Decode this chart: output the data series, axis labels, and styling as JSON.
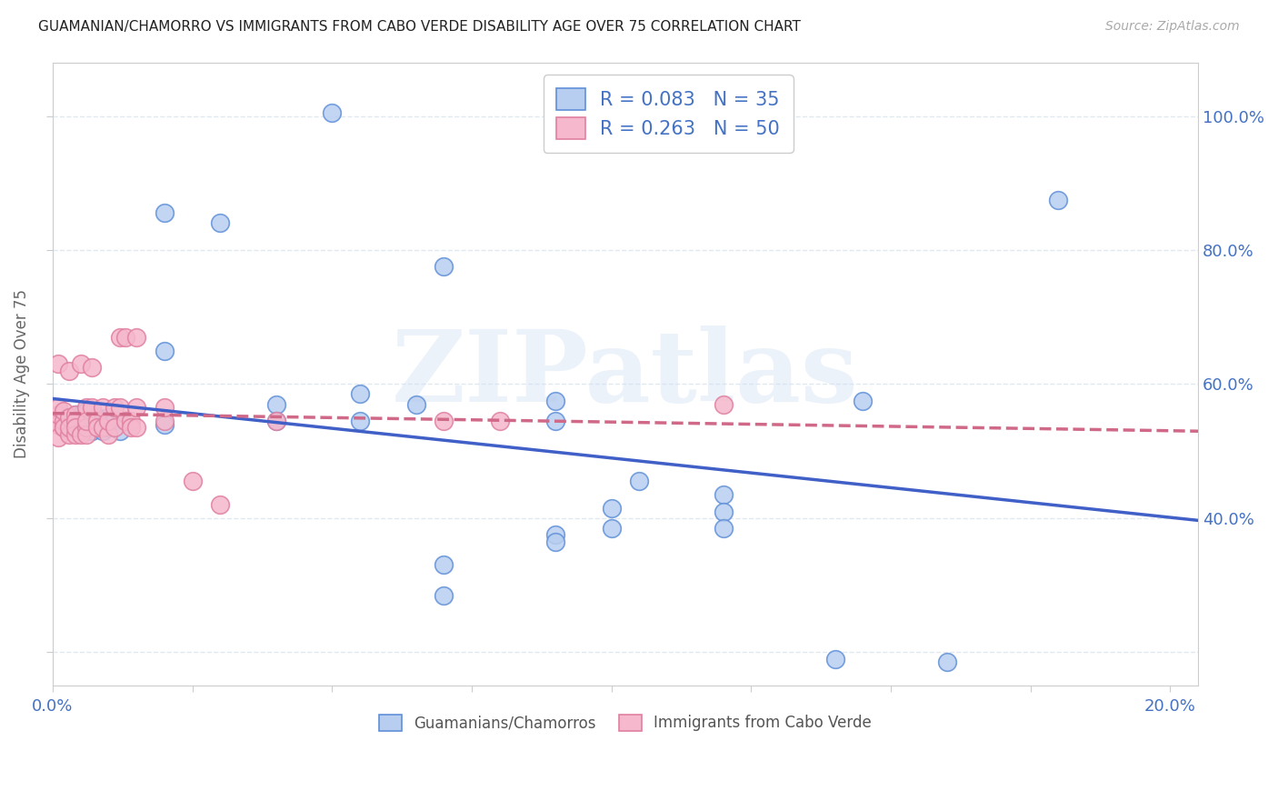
{
  "title": "GUAMANIAN/CHAMORRO VS IMMIGRANTS FROM CABO VERDE DISABILITY AGE OVER 75 CORRELATION CHART",
  "source": "Source: ZipAtlas.com",
  "ylabel": "Disability Age Over 75",
  "R_blue": 0.083,
  "N_blue": 35,
  "R_pink": 0.263,
  "N_pink": 50,
  "legend_label_blue": "Guamanians/Chamorros",
  "legend_label_pink": "Immigrants from Cabo Verde",
  "watermark": "ZIPatlas",
  "blue_fill": "#b8cef0",
  "blue_edge": "#6090d8",
  "pink_fill": "#f5b8cc",
  "pink_edge": "#e080a0",
  "blue_line": "#4060c8",
  "pink_line": "#d06888",
  "blue_scatter": [
    [
      0.001,
      0.54
    ],
    [
      0.002,
      0.54
    ],
    [
      0.003,
      0.545
    ],
    [
      0.003,
      0.535
    ],
    [
      0.004,
      0.555
    ],
    [
      0.004,
      0.545
    ],
    [
      0.005,
      0.54
    ],
    [
      0.005,
      0.555
    ],
    [
      0.005,
      0.53
    ],
    [
      0.006,
      0.56
    ],
    [
      0.006,
      0.545
    ],
    [
      0.007,
      0.545
    ],
    [
      0.007,
      0.53
    ],
    [
      0.008,
      0.55
    ],
    [
      0.008,
      0.545
    ],
    [
      0.009,
      0.53
    ],
    [
      0.009,
      0.545
    ],
    [
      0.01,
      0.535
    ],
    [
      0.01,
      0.55
    ],
    [
      0.011,
      0.545
    ],
    [
      0.012,
      0.53
    ],
    [
      0.013,
      0.545
    ],
    [
      0.02,
      0.65
    ],
    [
      0.02,
      0.54
    ],
    [
      0.04,
      0.57
    ],
    [
      0.04,
      0.545
    ],
    [
      0.055,
      0.585
    ],
    [
      0.055,
      0.545
    ],
    [
      0.065,
      0.57
    ],
    [
      0.09,
      0.545
    ],
    [
      0.09,
      0.575
    ],
    [
      0.105,
      0.455
    ],
    [
      0.12,
      0.435
    ],
    [
      0.145,
      0.575
    ],
    [
      0.18,
      0.875
    ]
  ],
  "blue_outliers": [
    [
      0.02,
      0.855
    ],
    [
      0.03,
      0.84
    ],
    [
      0.05,
      1.005
    ],
    [
      0.07,
      0.775
    ],
    [
      0.07,
      0.33
    ],
    [
      0.07,
      0.285
    ],
    [
      0.09,
      0.375
    ],
    [
      0.09,
      0.365
    ],
    [
      0.1,
      0.415
    ],
    [
      0.1,
      0.385
    ],
    [
      0.12,
      0.41
    ],
    [
      0.12,
      0.385
    ],
    [
      0.14,
      0.19
    ],
    [
      0.16,
      0.185
    ]
  ],
  "pink_scatter": [
    [
      0.001,
      0.54
    ],
    [
      0.001,
      0.555
    ],
    [
      0.001,
      0.565
    ],
    [
      0.001,
      0.63
    ],
    [
      0.001,
      0.52
    ],
    [
      0.002,
      0.535
    ],
    [
      0.002,
      0.545
    ],
    [
      0.002,
      0.56
    ],
    [
      0.002,
      0.535
    ],
    [
      0.003,
      0.62
    ],
    [
      0.003,
      0.55
    ],
    [
      0.003,
      0.525
    ],
    [
      0.003,
      0.535
    ],
    [
      0.004,
      0.555
    ],
    [
      0.004,
      0.545
    ],
    [
      0.004,
      0.525
    ],
    [
      0.004,
      0.535
    ],
    [
      0.005,
      0.63
    ],
    [
      0.005,
      0.525
    ],
    [
      0.006,
      0.565
    ],
    [
      0.006,
      0.535
    ],
    [
      0.006,
      0.525
    ],
    [
      0.006,
      0.545
    ],
    [
      0.007,
      0.625
    ],
    [
      0.007,
      0.565
    ],
    [
      0.008,
      0.545
    ],
    [
      0.008,
      0.535
    ],
    [
      0.009,
      0.565
    ],
    [
      0.009,
      0.535
    ],
    [
      0.01,
      0.525
    ],
    [
      0.01,
      0.545
    ],
    [
      0.011,
      0.565
    ],
    [
      0.011,
      0.535
    ],
    [
      0.012,
      0.67
    ],
    [
      0.012,
      0.565
    ],
    [
      0.013,
      0.67
    ],
    [
      0.013,
      0.545
    ],
    [
      0.014,
      0.545
    ],
    [
      0.014,
      0.535
    ],
    [
      0.015,
      0.67
    ],
    [
      0.015,
      0.565
    ],
    [
      0.015,
      0.535
    ],
    [
      0.02,
      0.545
    ],
    [
      0.02,
      0.565
    ],
    [
      0.025,
      0.455
    ],
    [
      0.03,
      0.42
    ],
    [
      0.04,
      0.545
    ],
    [
      0.07,
      0.545
    ],
    [
      0.08,
      0.545
    ],
    [
      0.12,
      0.57
    ]
  ],
  "xmin": 0.0,
  "xmax": 0.205,
  "ymin": 0.15,
  "ymax": 1.08,
  "yticks": [
    0.2,
    0.4,
    0.6,
    0.8,
    1.0
  ],
  "ytick_right_labels": [
    "",
    "40.0%",
    "60.0%",
    "80.0%",
    "100.0%"
  ],
  "xticks": [
    0.0,
    0.025,
    0.05,
    0.075,
    0.1,
    0.125,
    0.15,
    0.175,
    0.2
  ],
  "xtick_display": [
    "0.0%",
    "",
    "",
    "",
    "",
    "",
    "",
    "",
    "20.0%"
  ],
  "grid_color": "#e0e8f0",
  "accent_color": "#4472c4"
}
